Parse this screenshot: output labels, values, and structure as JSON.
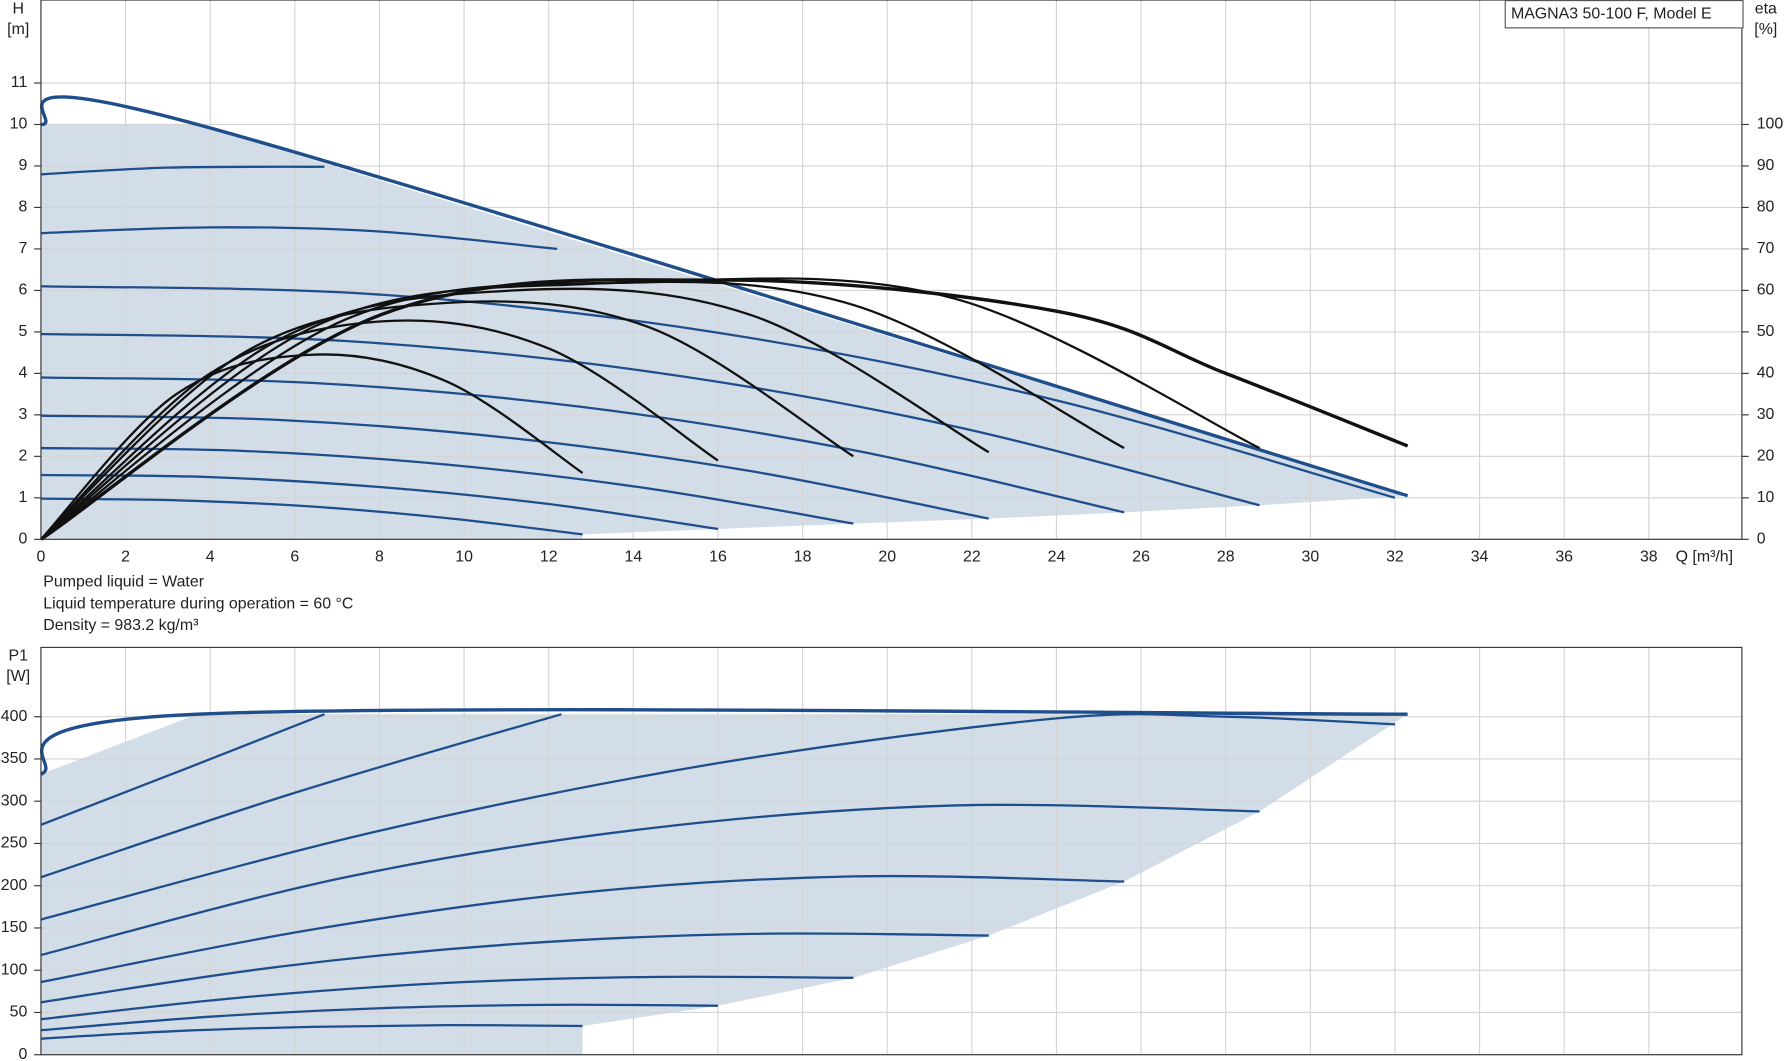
{
  "chart_data": [
    {
      "type": "line",
      "title": "MAGNA3 50-100 F, Model E",
      "ylabel": [
        "H",
        "[m]"
      ],
      "y2label": [
        "eta",
        "[%]"
      ],
      "xlabel": "Q [m³/h]",
      "notes": [
        "Pumped liquid = Water",
        "Liquid temperature during operation = 60 °C",
        "Density = 983.2 kg/m³"
      ],
      "xlim": [
        0,
        40.2
      ],
      "xticks": [
        0,
        2,
        4,
        6,
        8,
        10,
        12,
        14,
        16,
        18,
        20,
        22,
        24,
        26,
        28,
        30,
        32,
        34,
        36,
        38
      ],
      "show_xtick_labels": true,
      "ylim": [
        0,
        13
      ],
      "yticks": [
        0,
        1,
        2,
        3,
        4,
        5,
        6,
        7,
        8,
        9,
        10,
        11
      ],
      "y2lim": [
        0,
        130
      ],
      "y2ticks": [
        0,
        10,
        20,
        30,
        40,
        50,
        60,
        70,
        80,
        90,
        100
      ],
      "grid": true,
      "area_color": "#d2dde8",
      "series": [
        {
          "color": "#1f4e8c",
          "linewidth": 3,
          "x": [
            0,
            3.7,
            32.3
          ],
          "values": [
            10,
            10,
            1.05
          ]
        },
        {
          "color": "#1f4e8c",
          "linewidth": 2,
          "x": [
            0,
            3,
            6.7
          ],
          "values": [
            8.8,
            8.96,
            8.98
          ]
        },
        {
          "color": "#1f4e8c",
          "linewidth": 2,
          "x": [
            0,
            4,
            8,
            12.2
          ],
          "values": [
            7.38,
            7.52,
            7.42,
            7.0
          ]
        },
        {
          "color": "#1f4e8c",
          "linewidth": 2,
          "x": [
            0,
            8,
            16,
            24,
            32
          ],
          "values": [
            6.1,
            5.9,
            4.98,
            3.35,
            1.0
          ]
        },
        {
          "color": "#1f4e8c",
          "linewidth": 2,
          "x": [
            0,
            7.2,
            14.4,
            21.6,
            28.8
          ],
          "values": [
            4.95,
            4.78,
            4.04,
            2.72,
            0.82
          ]
        },
        {
          "color": "#1f4e8c",
          "linewidth": 2,
          "x": [
            0,
            6.4,
            12.8,
            19.2,
            25.6
          ],
          "values": [
            3.9,
            3.77,
            3.19,
            2.15,
            0.65
          ]
        },
        {
          "color": "#1f4e8c",
          "linewidth": 2,
          "x": [
            0,
            5.6,
            11.2,
            16.8,
            22.4
          ],
          "values": [
            2.98,
            2.88,
            2.43,
            1.64,
            0.5
          ]
        },
        {
          "color": "#1f4e8c",
          "linewidth": 2,
          "x": [
            0,
            4.8,
            9.6,
            14.4,
            19.2
          ],
          "values": [
            2.2,
            2.13,
            1.8,
            1.22,
            0.38
          ]
        },
        {
          "color": "#1f4e8c",
          "linewidth": 2,
          "x": [
            0,
            4,
            8,
            12,
            16
          ],
          "values": [
            1.55,
            1.5,
            1.26,
            0.85,
            0.25
          ]
        },
        {
          "color": "#1f4e8c",
          "linewidth": 2,
          "x": [
            0,
            3.2,
            6.4,
            9.6,
            12.8
          ],
          "values": [
            0.98,
            0.94,
            0.79,
            0.51,
            0.12
          ]
        },
        {
          "color": "#111111",
          "linewidth": 2,
          "axis": "y2",
          "x": [
            0,
            3.2,
            6.4,
            9.6,
            12.8
          ],
          "values": [
            0,
            35,
            44.5,
            38,
            16
          ]
        },
        {
          "color": "#111111",
          "linewidth": 2,
          "axis": "y2",
          "x": [
            0,
            4,
            8,
            12,
            16
          ],
          "values": [
            0,
            40,
            52.5,
            46,
            19
          ]
        },
        {
          "color": "#111111",
          "linewidth": 2,
          "axis": "y2",
          "x": [
            0,
            4.8,
            9.6,
            14.4,
            19.2
          ],
          "values": [
            0,
            45,
            57,
            51,
            20
          ]
        },
        {
          "color": "#111111",
          "linewidth": 2,
          "axis": "y2",
          "x": [
            0,
            5.6,
            11.2,
            16.8,
            22.4
          ],
          "values": [
            0,
            48,
            60,
            54,
            21
          ]
        },
        {
          "color": "#111111",
          "linewidth": 2,
          "axis": "y2",
          "x": [
            0,
            6.4,
            12.8,
            19.2,
            25.6
          ],
          "values": [
            0,
            51,
            61.5,
            56.5,
            22
          ]
        },
        {
          "color": "#111111",
          "linewidth": 2,
          "axis": "y2",
          "x": [
            0,
            7.2,
            14.4,
            21.6,
            28.8
          ],
          "values": [
            0,
            53,
            62,
            58,
            22
          ]
        },
        {
          "color": "#111111",
          "linewidth": 3,
          "axis": "y2",
          "x": [
            0,
            8,
            16,
            24,
            28,
            32.3
          ],
          "values": [
            0,
            54,
            62.5,
            55,
            40,
            22.5
          ]
        }
      ]
    },
    {
      "type": "line",
      "ylabel": [
        "P1",
        "[W]"
      ],
      "xlim": [
        0,
        40.2
      ],
      "xticks": [
        0,
        2,
        4,
        6,
        8,
        10,
        12,
        14,
        16,
        18,
        20,
        22,
        24,
        26,
        28,
        30,
        32,
        34,
        36,
        38
      ],
      "show_xtick_labels": false,
      "ylim": [
        0,
        482
      ],
      "yticks": [
        0,
        50,
        100,
        150,
        200,
        250,
        300,
        350,
        400
      ],
      "grid": true,
      "area_color": "#d2dde8",
      "series": [
        {
          "color": "#1f4e8c",
          "linewidth": 3,
          "x": [
            0,
            3.7,
            32.3
          ],
          "values": [
            332,
            403,
            403
          ]
        },
        {
          "color": "#1f4e8c",
          "linewidth": 2,
          "x": [
            0,
            3.5,
            6.7
          ],
          "values": [
            272,
            340,
            403
          ]
        },
        {
          "color": "#1f4e8c",
          "linewidth": 2,
          "x": [
            0,
            6,
            12.3
          ],
          "values": [
            210,
            310,
            403
          ]
        },
        {
          "color": "#1f4e8c",
          "linewidth": 2,
          "x": [
            0,
            8,
            16,
            24,
            28,
            32
          ],
          "values": [
            160,
            265,
            345,
            398,
            400,
            391
          ]
        },
        {
          "color": "#1f4e8c",
          "linewidth": 2,
          "x": [
            0,
            7.2,
            14.4,
            21.6,
            28.8
          ],
          "values": [
            118,
            210,
            268,
            295,
            288
          ]
        },
        {
          "color": "#1f4e8c",
          "linewidth": 2,
          "x": [
            0,
            6.4,
            12.8,
            19.2,
            25.6
          ],
          "values": [
            86,
            148,
            192,
            211,
            205
          ]
        },
        {
          "color": "#1f4e8c",
          "linewidth": 2,
          "x": [
            0,
            5.6,
            11.2,
            16.8,
            22.4
          ],
          "values": [
            62,
            104,
            131,
            143,
            141
          ]
        },
        {
          "color": "#1f4e8c",
          "linewidth": 2,
          "x": [
            0,
            4.8,
            9.6,
            14.4,
            19.2
          ],
          "values": [
            42,
            68,
            85,
            92,
            91
          ]
        },
        {
          "color": "#1f4e8c",
          "linewidth": 2,
          "x": [
            0,
            4,
            8,
            12,
            16
          ],
          "values": [
            29,
            45,
            55,
            59,
            58
          ]
        },
        {
          "color": "#1f4e8c",
          "linewidth": 2,
          "x": [
            0,
            3.2,
            6.4,
            9.6,
            12.8
          ],
          "values": [
            19,
            28,
            33,
            35,
            34
          ]
        }
      ]
    }
  ]
}
